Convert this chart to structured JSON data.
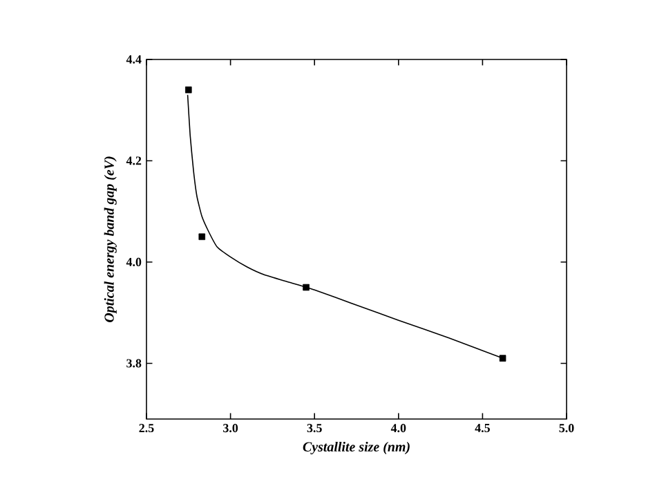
{
  "chart_data": {
    "type": "scatter",
    "xlabel": "Cystallite size (nm)",
    "ylabel": "Optical energy band gap (eV)",
    "xlim": [
      2.5,
      5.0
    ],
    "ylim": [
      3.69,
      4.4
    ],
    "xticks": [
      2.5,
      {
        "value": 3,
        "label": "3.0"
      },
      3.5,
      {
        "value": 4,
        "label": "4.0"
      },
      4.5,
      {
        "value": 5,
        "label": "5.0"
      }
    ],
    "yticks": [
      3.8,
      {
        "value": 4,
        "label": "4.0"
      },
      4.2,
      4.4
    ],
    "series": [
      {
        "marker": "square",
        "color": "#000000",
        "x": [
          2.75,
          2.83,
          3.45,
          4.62
        ],
        "values": [
          4.34,
          4.05,
          3.95,
          3.81
        ]
      },
      {
        "type": "line",
        "marker": "none",
        "color": "#000000",
        "x": [
          2.745,
          2.76,
          2.78,
          2.8,
          2.83,
          2.87,
          2.92,
          3.0,
          3.1,
          3.2,
          3.35,
          3.5,
          3.75,
          4.0,
          4.3,
          4.62
        ],
        "values": [
          4.33,
          4.25,
          4.18,
          4.13,
          4.09,
          4.06,
          4.03,
          4.01,
          3.99,
          3.975,
          3.96,
          3.945,
          3.915,
          3.885,
          3.85,
          3.81
        ]
      }
    ]
  }
}
